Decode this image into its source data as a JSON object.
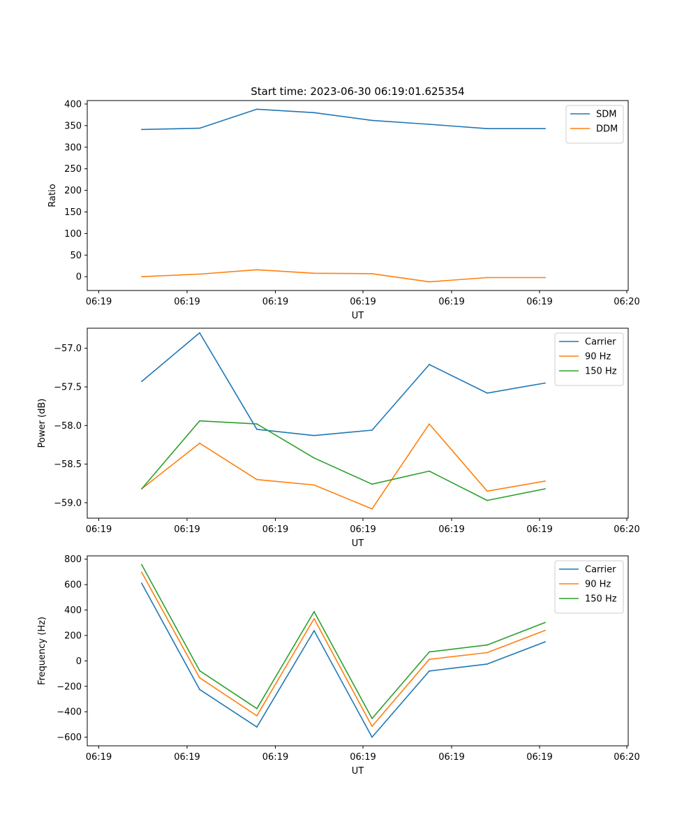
{
  "title": "Start time: 2023-06-30 06:19:01.625354",
  "chart_data": [
    {
      "type": "line",
      "xlabel": "UT",
      "ylabel": "Ratio",
      "xticklabels": [
        "06:19",
        "06:19",
        "06:19",
        "06:19",
        "06:19",
        "06:19",
        "06:20"
      ],
      "ylim": [
        -32,
        408
      ],
      "yticks": [
        0,
        50,
        100,
        150,
        200,
        250,
        300,
        350,
        400
      ],
      "ytick_labels": [
        "0",
        "50",
        "100",
        "150",
        "200",
        "250",
        "300",
        "350",
        "400"
      ],
      "legend_position": "top-right",
      "grid": false,
      "series": [
        {
          "name": "SDM",
          "color": "#1f77b4",
          "values": [
            341,
            344,
            388,
            380,
            362,
            353,
            343,
            343
          ]
        },
        {
          "name": "DDM",
          "color": "#ff7f0e",
          "values": [
            0,
            6,
            16,
            8,
            7,
            -12,
            -2,
            -2
          ]
        }
      ]
    },
    {
      "type": "line",
      "xlabel": "UT",
      "ylabel": "Power (dB)",
      "xticklabels": [
        "06:19",
        "06:19",
        "06:19",
        "06:19",
        "06:19",
        "06:19",
        "06:20"
      ],
      "ylim": [
        -59.2,
        -56.74
      ],
      "yticks": [
        -59.0,
        -58.5,
        -58.0,
        -57.5,
        -57.0
      ],
      "ytick_labels": [
        "−59.0",
        "−58.5",
        "−58.0",
        "−57.5",
        "−57.0"
      ],
      "legend_position": "top-right",
      "grid": false,
      "series": [
        {
          "name": "Carrier",
          "color": "#1f77b4",
          "values": [
            -57.43,
            -56.8,
            -58.05,
            -58.13,
            -58.06,
            -57.21,
            -57.58,
            -57.45
          ]
        },
        {
          "name": "90 Hz",
          "color": "#ff7f0e",
          "values": [
            -58.82,
            -58.23,
            -58.7,
            -58.77,
            -59.08,
            -57.98,
            -58.85,
            -58.72
          ]
        },
        {
          "name": "150 Hz",
          "color": "#2ca02c",
          "values": [
            -58.82,
            -57.94,
            -57.98,
            -58.42,
            -58.76,
            -58.59,
            -58.97,
            -58.82
          ]
        }
      ]
    },
    {
      "type": "line",
      "xlabel": "UT",
      "ylabel": "Frequency (Hz)",
      "xticklabels": [
        "06:19",
        "06:19",
        "06:19",
        "06:19",
        "06:19",
        "06:19",
        "06:20"
      ],
      "ylim": [
        -668,
        826
      ],
      "yticks": [
        -600,
        -400,
        -200,
        0,
        200,
        400,
        600,
        800
      ],
      "ytick_labels": [
        "−600",
        "−400",
        "−200",
        "0",
        "200",
        "400",
        "600",
        "800"
      ],
      "legend_position": "top-right",
      "grid": false,
      "series": [
        {
          "name": "Carrier",
          "color": "#1f77b4",
          "values": [
            610,
            -225,
            -520,
            238,
            -600,
            -80,
            -25,
            150
          ]
        },
        {
          "name": "90 Hz",
          "color": "#ff7f0e",
          "values": [
            697,
            -133,
            -432,
            332,
            -515,
            12,
            65,
            240
          ]
        },
        {
          "name": "150 Hz",
          "color": "#2ca02c",
          "values": [
            757,
            -77,
            -375,
            387,
            -453,
            70,
            125,
            302
          ]
        }
      ]
    }
  ]
}
